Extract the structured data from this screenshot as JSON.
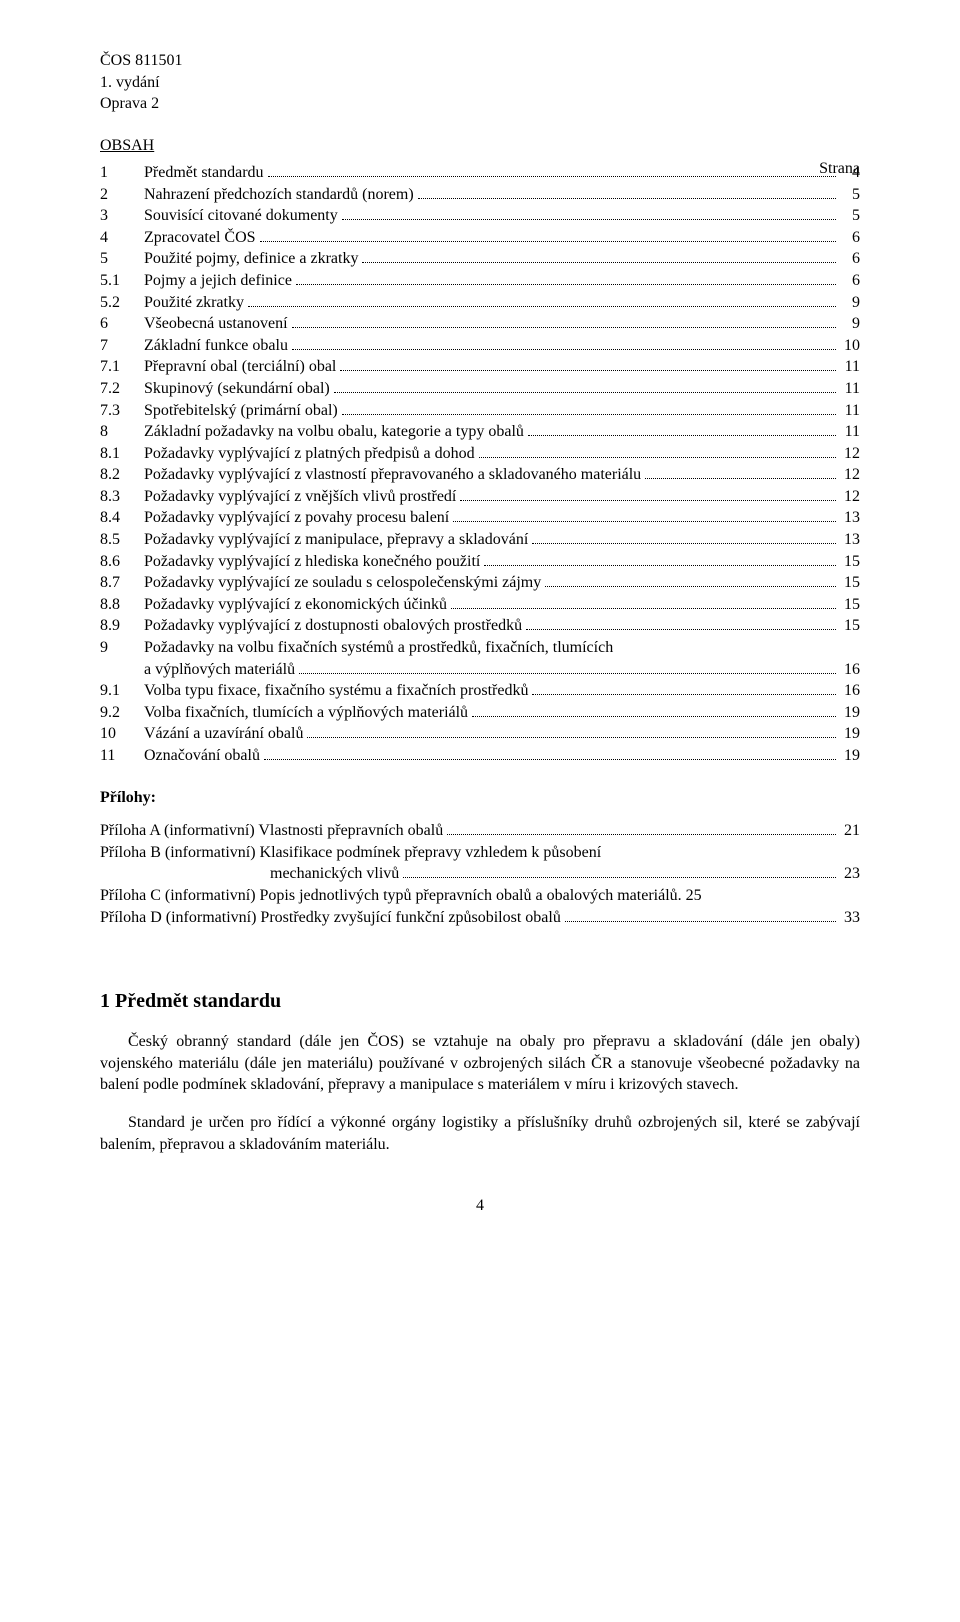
{
  "header": {
    "line1": "ČOS 811501",
    "line2": "1. vydání",
    "line3": "Oprava 2"
  },
  "obsah_label": "OBSAH",
  "strana_label": "Strana",
  "toc": [
    {
      "num": "1",
      "text": "Předmět standardu",
      "page": "4"
    },
    {
      "num": "2",
      "text": "Nahrazení předchozích standardů (norem)",
      "page": "5"
    },
    {
      "num": "3",
      "text": "Souvisící citované dokumenty",
      "page": "5"
    },
    {
      "num": "4",
      "text": "Zpracovatel ČOS",
      "page": "6"
    },
    {
      "num": "5",
      "text": "Použité pojmy, definice a zkratky",
      "page": "6"
    },
    {
      "num": "5.1",
      "text": "Pojmy a jejich definice",
      "page": "6"
    },
    {
      "num": "5.2",
      "text": "Použité zkratky",
      "page": "9"
    },
    {
      "num": "6",
      "text": "Všeobecná ustanovení",
      "page": "9"
    },
    {
      "num": "7",
      "text": "Základní funkce obalu",
      "page": "10"
    },
    {
      "num": "7.1",
      "text": "Přepravní obal (terciální) obal",
      "page": "11"
    },
    {
      "num": "7.2",
      "text": "Skupinový (sekundární obal)",
      "page": "11"
    },
    {
      "num": "7.3",
      "text": "Spotřebitelský (primární obal)",
      "page": "11"
    },
    {
      "num": "8",
      "text": "Základní požadavky na volbu obalu, kategorie a typy obalů",
      "page": "11"
    },
    {
      "num": "8.1",
      "text": "Požadavky vyplývající z platných předpisů a dohod",
      "page": "12"
    },
    {
      "num": "8.2",
      "text": "Požadavky vyplývající z vlastností přepravovaného a skladovaného materiálu",
      "page": "12"
    },
    {
      "num": "8.3",
      "text": "Požadavky vyplývající z vnějších vlivů prostředí",
      "page": "12"
    },
    {
      "num": "8.4",
      "text": "Požadavky vyplývající z povahy procesu balení",
      "page": "13"
    },
    {
      "num": "8.5",
      "text": "Požadavky vyplývající z manipulace, přepravy a skladování",
      "page": "13"
    },
    {
      "num": "8.6",
      "text": "Požadavky vyplývající z hlediska konečného použití",
      "page": "15"
    },
    {
      "num": "8.7",
      "text": "Požadavky vyplývající ze souladu s celospolečenskými zájmy",
      "page": "15"
    },
    {
      "num": "8.8",
      "text": "Požadavky vyplývající z ekonomických účinků",
      "page": "15"
    },
    {
      "num": "8.9",
      "text": "Požadavky vyplývající z dostupnosti obalových prostředků",
      "page": "15"
    },
    {
      "num": "9",
      "text": "Požadavky na volbu fixačních systémů a prostředků, fixačních, tlumících",
      "page": null,
      "cont": "a výplňových materiálů",
      "cont_page": "16"
    },
    {
      "num": "9.1",
      "text": "Volba typu fixace, fixačního systému a fixačních prostředků",
      "page": "16"
    },
    {
      "num": "9.2",
      "text": "Volba fixačních, tlumících a výplňových materiálů",
      "page": "19"
    },
    {
      "num": "10",
      "text": "Vázání a uzavírání obalů",
      "page": "19"
    },
    {
      "num": "11",
      "text": "Označování obalů",
      "page": "19"
    }
  ],
  "prilohy_label": "Přílohy:",
  "prilohy": [
    {
      "text": "Příloha A (informativní) Vlastnosti přepravních obalů",
      "page": "21"
    },
    {
      "text": "Příloha B (informativní) Klasifikace podmínek přepravy vzhledem k působení",
      "page": null,
      "cont": "mechanických vlivů",
      "cont_page": "23",
      "indent": true
    },
    {
      "text": "Příloha C (informativní) Popis jednotlivých typů přepravních obalů a obalových materiálů",
      "page": ". 25",
      "no_leader": true
    },
    {
      "text": "Příloha D (informativní) Prostředky zvyšující funkční způsobilost obalů",
      "page": "33"
    }
  ],
  "section": {
    "heading": "1   Předmět standardu",
    "para1": "Český obranný standard (dále jen ČOS) se vztahuje na obaly pro přepravu a skladování (dále jen obaly) vojenského materiálu (dále jen materiálu) používané v ozbrojených silách ČR a stanovuje všeobecné požadavky na balení podle podmínek skladování, přepravy a manipulace s materiálem v míru i krizových stavech.",
    "para2": "Standard je určen pro řídící a výkonné orgány logistiky a příslušníky druhů ozbrojených sil, které se zabývají balením, přepravou a skladováním materiálu."
  },
  "page_number": "4"
}
